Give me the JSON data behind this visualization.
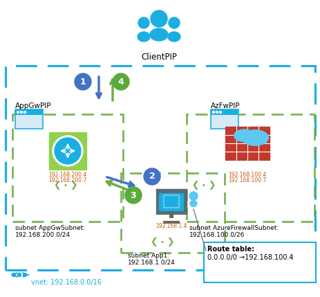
{
  "fig_w": 4.64,
  "fig_h": 4.29,
  "dpi": 100,
  "bg": "#ffffff",
  "cyan": "#1baee1",
  "green": "#70ad47",
  "blue_arrow": "#4472c4",
  "green_arrow": "#70ad47",
  "orange_text": "#c55a11",
  "circle_blue": "#4472c4",
  "circle_green": "#5aaa3c",
  "vnet_label": "vnet: 192.168.0.0/16",
  "appgw_subnet_label1": "subnet AppGwSubnet:",
  "appgw_subnet_label2": "192.168.200.0/24",
  "azfw_subnet_label1": "subnet AzureFirewallSubnet:",
  "azfw_subnet_label2": "192.168.100.0/26",
  "app1_subnet_label1": "subnet App1:",
  "app1_subnet_label2": "192.168.1.0/24",
  "route_label1": "Route table:",
  "route_label2": "0.0.0.0/0 →192.168.100.4",
  "appgw_pip": "AppGwPIP",
  "azfw_pip": "AzFwPIP",
  "clientpip": "ClientPIP",
  "appgw_ip1": "192.168.200.4",
  "appgw_ip2": "192.168.200.7",
  "azfw_ip1": "192.168.100.4",
  "azfw_ip2": "192.168.100.7",
  "app1_ip": "192.168.1.4"
}
